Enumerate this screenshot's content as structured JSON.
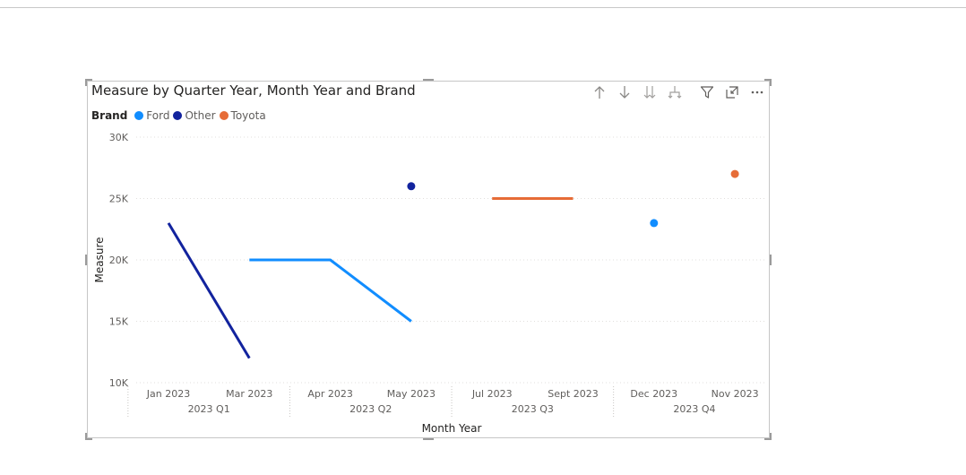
{
  "chart_data": {
    "type": "line",
    "title": "Measure by Quarter Year, Month Year and Brand",
    "xlabel": "Month Year",
    "ylabel": "Measure",
    "legend_title": "Brand",
    "legend_position": "top-left",
    "grid": true,
    "ylim": [
      10000,
      30000
    ],
    "y_ticks": [
      {
        "value": 10000,
        "label": "10K"
      },
      {
        "value": 15000,
        "label": "15K"
      },
      {
        "value": 20000,
        "label": "20K"
      },
      {
        "value": 25000,
        "label": "25K"
      },
      {
        "value": 30000,
        "label": "30K"
      }
    ],
    "categories": [
      "Jan 2023",
      "Mar 2023",
      "Apr 2023",
      "May 2023",
      "Jul 2023",
      "Sept 2023",
      "Dec 2023",
      "Nov 2023"
    ],
    "quarters": [
      {
        "label": "2023 Q1",
        "months": [
          "Jan 2023",
          "Mar 2023"
        ]
      },
      {
        "label": "2023 Q2",
        "months": [
          "Apr 2023",
          "May 2023"
        ]
      },
      {
        "label": "2023 Q3",
        "months": [
          "Jul 2023",
          "Sept 2023"
        ]
      },
      {
        "label": "2023 Q4",
        "months": [
          "Dec 2023",
          "Nov 2023"
        ]
      }
    ],
    "series": [
      {
        "name": "Ford",
        "color": "#118DFF",
        "values": [
          null,
          20000,
          20000,
          15000,
          null,
          null,
          23000,
          null
        ]
      },
      {
        "name": "Other",
        "color": "#12239E",
        "values": [
          23000,
          12000,
          null,
          26000,
          null,
          null,
          null,
          null
        ]
      },
      {
        "name": "Toyota",
        "color": "#E66C37",
        "values": [
          null,
          null,
          null,
          null,
          25000,
          25000,
          null,
          27000
        ]
      }
    ]
  },
  "header_icons": [
    "drill-up-icon",
    "drill-down-icon",
    "expand-next-level-icon",
    "expand-hierarchy-icon",
    "filter-icon",
    "focus-mode-icon",
    "more-options-icon"
  ]
}
